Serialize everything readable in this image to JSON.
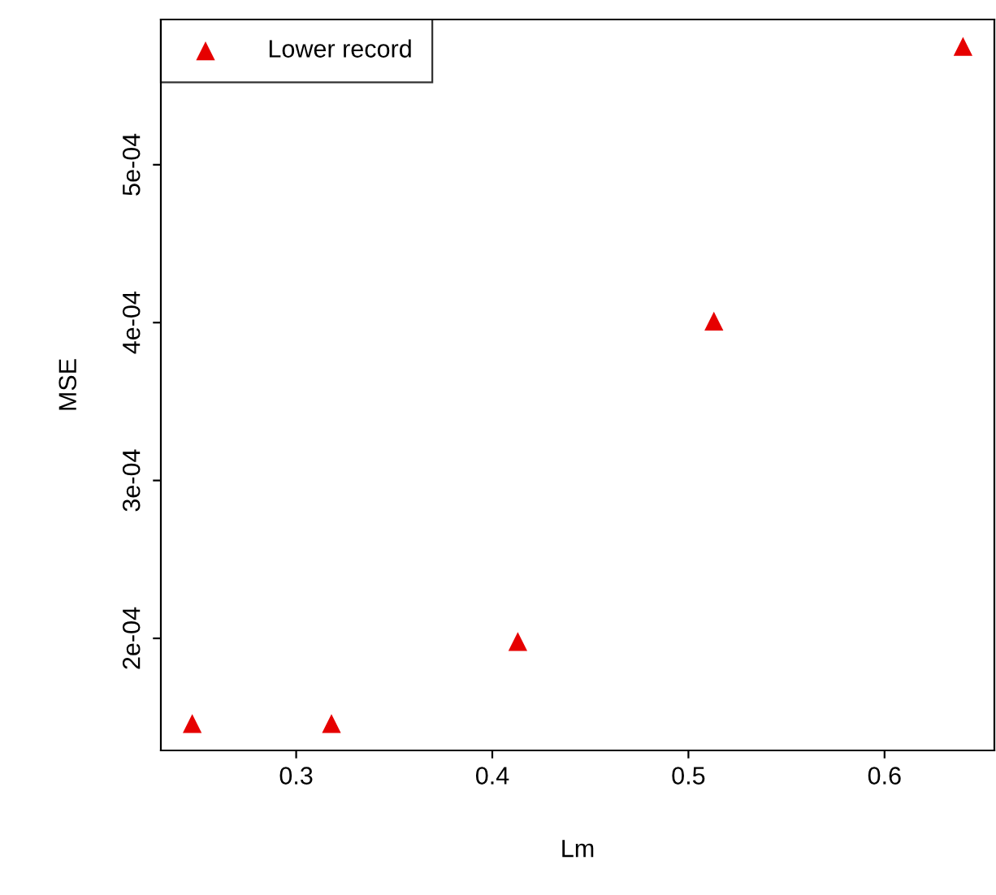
{
  "chart_data": {
    "type": "scatter",
    "xlabel": "Lm",
    "ylabel": "MSE",
    "x": [
      0.247,
      0.318,
      0.413,
      0.513,
      0.64
    ],
    "series": [
      {
        "name": "Lower record",
        "color": "#e60000",
        "values": [
          0.000146,
          0.000146,
          0.000198,
          0.000401,
          0.000575
        ]
      }
    ],
    "xlim": [
      0.231,
      0.656
    ],
    "ylim": [
      0.000129,
      0.000592
    ],
    "xticks": [
      0.3,
      0.4,
      0.5,
      0.6
    ],
    "yticks": [
      {
        "value": 0.0002,
        "label": "2e-04"
      },
      {
        "value": 0.0003,
        "label": "3e-04"
      },
      {
        "value": 0.0004,
        "label": "4e-04"
      },
      {
        "value": 0.0005,
        "label": "5e-04"
      }
    ],
    "marker": "triangle",
    "legend": "top left",
    "grid": false
  }
}
